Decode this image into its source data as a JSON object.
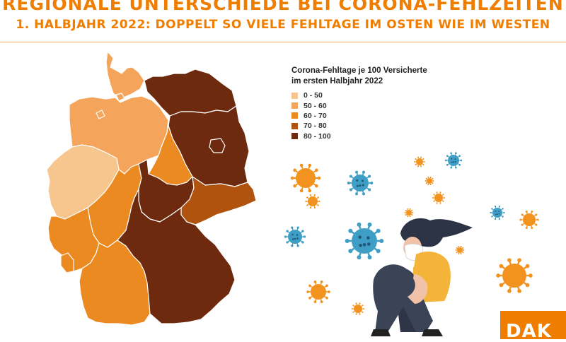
{
  "header": {
    "title": "REGIONALE UNTERSCHIEDE BEI CORONA-FEHLZEITEN",
    "subtitle": "1. HALBJAHR 2022: DOPPELT SO VIELE FEHLTAGE IM OSTEN WIE IM WESTEN"
  },
  "legend": {
    "title_line1": "Corona-Fehltage je 100 Versicherte",
    "title_line2": "im ersten Halbjahr 2022",
    "items": [
      {
        "label": "0 - 50",
        "color": "#f7c68f"
      },
      {
        "label": "50 - 60",
        "color": "#f4a55b"
      },
      {
        "label": "60 - 70",
        "color": "#ec8a22"
      },
      {
        "label": "70 - 80",
        "color": "#b0530f"
      },
      {
        "label": "80 - 100",
        "color": "#6e2a0e"
      }
    ]
  },
  "map": {
    "regions": [
      {
        "name": "Schleswig-Holstein",
        "band": 1
      },
      {
        "name": "Hamburg",
        "band": 1
      },
      {
        "name": "Niedersachsen",
        "band": 1
      },
      {
        "name": "Bremen",
        "band": 1
      },
      {
        "name": "Mecklenburg-Vorpommern",
        "band": 4
      },
      {
        "name": "Berlin",
        "band": 4
      },
      {
        "name": "Brandenburg",
        "band": 4
      },
      {
        "name": "Sachsen-Anhalt",
        "band": 2
      },
      {
        "name": "Nordrhein-Westfalen",
        "band": 0
      },
      {
        "name": "Hessen",
        "band": 2
      },
      {
        "name": "Thüringen",
        "band": 4
      },
      {
        "name": "Sachsen",
        "band": 3
      },
      {
        "name": "Rheinland-Pfalz",
        "band": 2
      },
      {
        "name": "Saarland",
        "band": 2
      },
      {
        "name": "Baden-Württemberg",
        "band": 2
      },
      {
        "name": "Bayern",
        "band": 4
      }
    ]
  },
  "illustration": {
    "figure": "sitting-person-with-mask",
    "icon": "coronavirus-icon",
    "virus_colors": [
      "#f29320",
      "#3e9ec5"
    ]
  },
  "logo": {
    "text": "DAK",
    "color": "#ef7d00"
  }
}
